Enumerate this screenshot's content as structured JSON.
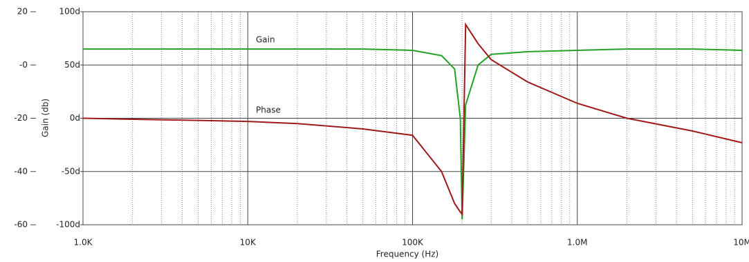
{
  "chart_data": {
    "type": "line",
    "x_label": "Frequency (Hz)",
    "y_label": "Gain (db)",
    "annotations": [
      "Gain",
      "Phase"
    ],
    "x": [
      1000,
      2000,
      5000,
      10000,
      20000,
      50000,
      100000,
      150000,
      180000,
      195000,
      200000,
      210000,
      250000,
      300000,
      500000,
      1000000,
      2000000,
      5000000,
      10000000
    ],
    "series": [
      {
        "name": "Gain",
        "color": "#22a022",
        "values": [
          6,
          6,
          6,
          6,
          6,
          6,
          5.5,
          3.5,
          -1.5,
          -20,
          -58,
          -15,
          0,
          4,
          5,
          5.5,
          6,
          6,
          5.5
        ]
      },
      {
        "name": "Phase",
        "color": "#a01818",
        "axis": "y2",
        "values": [
          0,
          -1,
          -2,
          -3,
          -5,
          -10,
          -16,
          -50,
          -80,
          -88,
          -90,
          88,
          70,
          55,
          34,
          14,
          0,
          -12,
          -23
        ]
      }
    ],
    "xscale": "log",
    "xlim": [
      1000,
      10000000
    ],
    "xticks": [
      {
        "value": 1000,
        "label": "1.0K"
      },
      {
        "value": 10000,
        "label": "10K"
      },
      {
        "value": 100000,
        "label": "100K"
      },
      {
        "value": 1000000,
        "label": "1.0M"
      },
      {
        "value": 10000000,
        "label": "10M"
      }
    ],
    "xminorticks": [
      2000,
      3000,
      4000,
      5000,
      6000,
      7000,
      8000,
      9000,
      20000,
      30000,
      40000,
      50000,
      60000,
      70000,
      80000,
      90000,
      200000,
      300000,
      400000,
      500000,
      600000,
      700000,
      800000,
      900000,
      2000000,
      3000000,
      4000000,
      5000000,
      6000000,
      7000000,
      8000000,
      9000000
    ],
    "ylim": [
      -60,
      20
    ],
    "yticks": [
      20,
      {
        "value": 0,
        "label": "-0"
      },
      -20,
      -40,
      -60
    ],
    "y2lim": [
      -100,
      100
    ],
    "y2ticks": [
      {
        "value": 100,
        "label": "100d"
      },
      {
        "value": 50,
        "label": "50d"
      },
      {
        "value": 0,
        "label": "0d"
      },
      {
        "value": -50,
        "label": "-50d"
      },
      {
        "value": -100,
        "label": "-100d"
      }
    ],
    "grid": true
  }
}
